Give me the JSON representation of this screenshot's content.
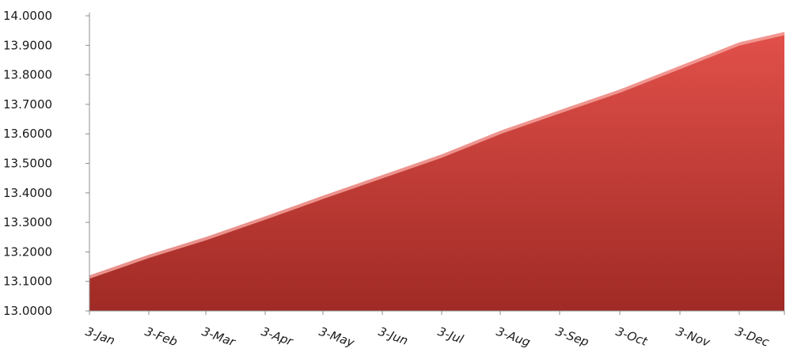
{
  "chart_data": {
    "type": "area",
    "title": "",
    "xlabel": "",
    "ylabel": "",
    "x_tick_labels": [
      "3-Jan",
      "3-Feb",
      "3-Mar",
      "3-Apr",
      "3-May",
      "3-Jun",
      "3-Jul",
      "3-Aug",
      "3-Sep",
      "3-Oct",
      "3-Nov",
      "3-Dec"
    ],
    "y_tick_labels": [
      "13.0000",
      "13.1000",
      "13.2000",
      "13.3000",
      "13.4000",
      "13.5000",
      "13.6000",
      "13.7000",
      "13.8000",
      "13.9000",
      "14.0000"
    ],
    "ylim": [
      13.0,
      14.0
    ],
    "grid": false,
    "legend": "none",
    "series": [
      {
        "x": [
          "3-Jan",
          "3-Feb",
          "3-Mar",
          "3-Apr",
          "3-May",
          "3-Jun",
          "3-Jul",
          "3-Aug",
          "3-Sep",
          "3-Oct",
          "3-Nov",
          "3-Dec"
        ],
        "values": [
          13.12,
          13.19,
          13.25,
          13.32,
          13.39,
          13.46,
          13.53,
          13.61,
          13.68,
          13.75,
          13.83,
          13.91
        ],
        "end_value": 13.945,
        "color": "#d9453d"
      }
    ],
    "colors": {
      "fill_top": "#e2504a",
      "fill_bottom": "#a02a25",
      "highlight": "#f4a29c",
      "axis": "#8c8c8c",
      "text": "#1a1a1a"
    }
  }
}
